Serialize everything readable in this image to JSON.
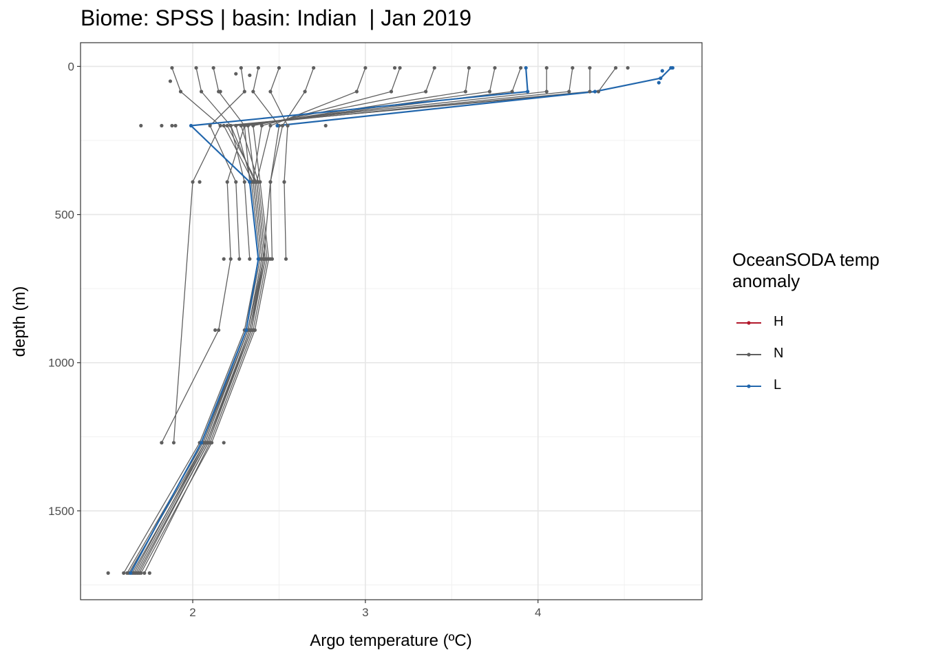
{
  "title": "Biome: SPSS | basin: Indian  | Jan 2019",
  "chart_data": {
    "type": "line",
    "xlabel": "Argo temperature (ºC)",
    "ylabel": "depth (m)",
    "xlim": [
      1.35,
      4.95
    ],
    "ylim": [
      1800,
      -80
    ],
    "y_reversed": true,
    "grid": true,
    "x_ticks": [
      2,
      3,
      4
    ],
    "x_minor_ticks": [
      2.5,
      3.5,
      4.5
    ],
    "y_ticks": [
      0,
      500,
      1000,
      1500
    ],
    "y_minor_ticks": [
      250,
      750,
      1250,
      1750
    ],
    "legend": {
      "title": "OceanSODA temp\nanomaly",
      "position": "right",
      "entries": [
        {
          "label": "H",
          "color": "#b2182b"
        },
        {
          "label": "N",
          "color": "#5f5f5f"
        },
        {
          "label": "L",
          "color": "#2166ac"
        }
      ]
    },
    "standard_depths": [
      200,
      390,
      650,
      890,
      1270,
      1710
    ],
    "series": [
      {
        "group": "L",
        "color": "#2166ac",
        "x": [
          3.93,
          3.94,
          1.99,
          2.33,
          2.38,
          2.31,
          2.05,
          1.64
        ],
        "y": [
          5,
          85,
          200,
          390,
          650,
          890,
          1270,
          1710
        ]
      },
      {
        "group": "L",
        "color": "#2166ac",
        "x": [
          4.77,
          4.71,
          4.33,
          2.49
        ],
        "y": [
          5,
          40,
          85,
          200
        ]
      },
      {
        "group": "N",
        "color": "#5f5f5f",
        "x": [
          4.45,
          4.35,
          2.18,
          2.35,
          2.4,
          2.32,
          2.07,
          1.66
        ],
        "y": [
          5,
          85,
          200,
          390,
          650,
          890,
          1270,
          1710
        ]
      },
      {
        "group": "N",
        "color": "#5f5f5f",
        "x": [
          4.3,
          4.3,
          2.2,
          2.37,
          2.42,
          2.34,
          2.09,
          1.69
        ],
        "y": [
          5,
          85,
          200,
          390,
          650,
          890,
          1270,
          1710
        ]
      },
      {
        "group": "N",
        "color": "#5f5f5f",
        "x": [
          4.2,
          4.18,
          2.25,
          2.34,
          2.39,
          2.31,
          2.06,
          1.62
        ],
        "y": [
          5,
          85,
          200,
          390,
          650,
          890,
          1270,
          1710
        ]
      },
      {
        "group": "N",
        "color": "#5f5f5f",
        "x": [
          4.05,
          4.05,
          2.22,
          2.36,
          2.41,
          2.33,
          2.08,
          1.67
        ],
        "y": [
          5,
          85,
          200,
          390,
          650,
          890,
          1270,
          1710
        ]
      },
      {
        "group": "N",
        "color": "#5f5f5f",
        "x": [
          3.9,
          3.85,
          2.28,
          2.38,
          2.43,
          2.35,
          2.1,
          1.72
        ],
        "y": [
          5,
          85,
          200,
          390,
          650,
          890,
          1270,
          1710
        ]
      },
      {
        "group": "N",
        "color": "#5f5f5f",
        "x": [
          3.75,
          3.72,
          2.3,
          2.33,
          2.38,
          2.3,
          2.04,
          1.6
        ],
        "y": [
          5,
          85,
          200,
          390,
          650,
          890,
          1270,
          1710
        ]
      },
      {
        "group": "N",
        "color": "#5f5f5f",
        "x": [
          3.6,
          3.58,
          2.32,
          2.36,
          2.41,
          2.34,
          2.08,
          1.65
        ],
        "y": [
          5,
          85,
          200,
          390,
          650,
          890,
          1270,
          1710
        ]
      },
      {
        "group": "N",
        "color": "#5f5f5f",
        "x": [
          3.4,
          3.35,
          2.35,
          2.39,
          2.44,
          2.36,
          2.11,
          1.7
        ],
        "y": [
          5,
          85,
          200,
          390,
          650,
          890,
          1270,
          1710
        ]
      },
      {
        "group": "N",
        "color": "#5f5f5f",
        "x": [
          3.2,
          3.15,
          2.4,
          2.35,
          2.4,
          2.32,
          2.07,
          1.63
        ],
        "y": [
          5,
          85,
          200,
          390,
          650,
          890,
          1270,
          1710
        ]
      },
      {
        "group": "N",
        "color": "#5f5f5f",
        "x": [
          3.0,
          2.95,
          2.45,
          2.37,
          2.42,
          2.33,
          2.09,
          1.68
        ],
        "y": [
          5,
          85,
          200,
          390,
          650,
          890,
          1270,
          1710
        ]
      },
      {
        "group": "N",
        "color": "#5f5f5f",
        "x": [
          2.7,
          2.65,
          2.52,
          2.45,
          2.41,
          2.32,
          2.06
        ],
        "y": [
          5,
          85,
          200,
          390,
          650,
          890,
          1270
        ]
      },
      {
        "group": "N",
        "color": "#5f5f5f",
        "x": [
          2.5,
          2.45,
          2.55,
          2.53,
          2.54
        ],
        "y": [
          5,
          85,
          200,
          390,
          650
        ]
      },
      {
        "group": "N",
        "color": "#5f5f5f",
        "x": [
          2.28,
          2.3,
          2.1,
          2.25,
          2.27
        ],
        "y": [
          5,
          85,
          200,
          390,
          650
        ]
      },
      {
        "group": "N",
        "color": "#5f5f5f",
        "x": [
          2.12,
          2.15,
          2.3,
          2.2,
          2.22,
          2.15,
          1.82
        ],
        "y": [
          5,
          85,
          200,
          390,
          650,
          890,
          1270
        ]
      },
      {
        "group": "N",
        "color": "#5f5f5f",
        "x": [
          1.88,
          1.93,
          2.16,
          2.0,
          1.89
        ],
        "y": [
          5,
          85,
          200,
          390,
          1270
        ]
      },
      {
        "group": "N",
        "color": "#5f5f5f",
        "x": [
          2.02,
          2.05,
          2.22,
          2.3,
          2.33
        ],
        "y": [
          5,
          85,
          200,
          390,
          650
        ]
      },
      {
        "group": "N",
        "color": "#5f5f5f",
        "x": [
          2.38,
          2.35,
          2.5,
          2.45,
          2.46
        ],
        "y": [
          5,
          85,
          200,
          390,
          650
        ]
      }
    ],
    "points": [
      {
        "group": "N",
        "x": 1.7,
        "y": 200
      },
      {
        "group": "N",
        "x": 1.82,
        "y": 200
      },
      {
        "group": "N",
        "x": 1.88,
        "y": 200
      },
      {
        "group": "N",
        "x": 1.9,
        "y": 200
      },
      {
        "group": "N",
        "x": 2.77,
        "y": 200
      },
      {
        "group": "N",
        "x": 2.55,
        "y": 200
      },
      {
        "group": "N",
        "x": 2.04,
        "y": 390
      },
      {
        "group": "N",
        "x": 2.53,
        "y": 390
      },
      {
        "group": "N",
        "x": 2.18,
        "y": 650
      },
      {
        "group": "N",
        "x": 2.45,
        "y": 650
      },
      {
        "group": "N",
        "x": 2.13,
        "y": 890
      },
      {
        "group": "N",
        "x": 2.36,
        "y": 890
      },
      {
        "group": "N",
        "x": 1.82,
        "y": 1270
      },
      {
        "group": "N",
        "x": 2.18,
        "y": 1270
      },
      {
        "group": "N",
        "x": 1.51,
        "y": 1710
      },
      {
        "group": "N",
        "x": 1.75,
        "y": 1710
      },
      {
        "group": "N",
        "x": 4.52,
        "y": 5
      },
      {
        "group": "N",
        "x": 3.17,
        "y": 5
      },
      {
        "group": "N",
        "x": 2.25,
        "y": 25
      },
      {
        "group": "N",
        "x": 2.33,
        "y": 30
      },
      {
        "group": "N",
        "x": 1.87,
        "y": 50
      },
      {
        "group": "N",
        "x": 2.16,
        "y": 85
      },
      {
        "group": "L",
        "x": 4.78,
        "y": 5
      },
      {
        "group": "L",
        "x": 4.72,
        "y": 15
      },
      {
        "group": "L",
        "x": 4.7,
        "y": 55
      }
    ]
  }
}
